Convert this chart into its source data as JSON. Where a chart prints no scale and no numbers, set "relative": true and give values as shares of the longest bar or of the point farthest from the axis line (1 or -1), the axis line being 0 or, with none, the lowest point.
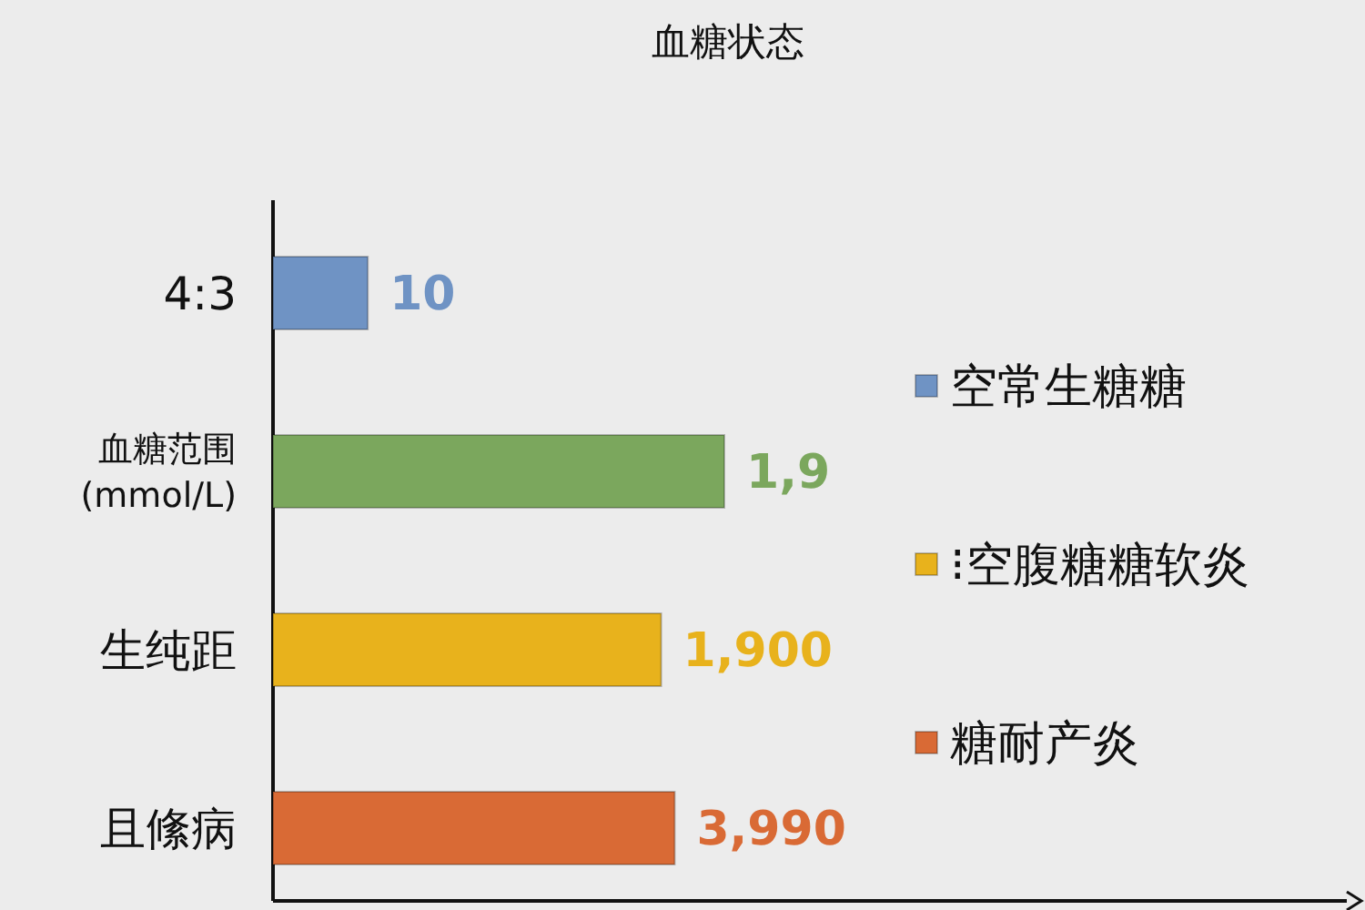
{
  "chart_data": {
    "type": "bar",
    "title": "血糖状态",
    "orientation": "horizontal",
    "relative": true,
    "legend": "right",
    "categories": [
      "4:3",
      "血糖范围 (mmol/L)",
      "生纯距",
      "且絛病"
    ],
    "series": [
      {
        "name": "空常生糖糖",
        "color": "#6f93c4",
        "values": [
          0.21,
          null,
          null,
          null
        ]
      },
      {
        "color": "#7ba75d",
        "values": [
          null,
          1,
          null,
          null
        ]
      },
      {
        "name": "⁝空腹糖糖软炎",
        "color": "#e8b21c",
        "values": [
          null,
          null,
          0.86,
          null
        ]
      },
      {
        "name": "糖耐产炎",
        "color": "#d96a35",
        "values": [
          null,
          null,
          null,
          0.89
        ]
      }
    ],
    "annotations": [
      {
        "text": "10",
        "x": 0.21,
        "y": "4:3"
      },
      {
        "text": "1,9",
        "x": 1,
        "y": "血糖范围 (mmol/L)"
      },
      {
        "text": "1,900",
        "x": 0.86,
        "y": "生纯距"
      },
      {
        "text": "3,990",
        "x": 0.89,
        "y": "且絛病"
      }
    ]
  }
}
